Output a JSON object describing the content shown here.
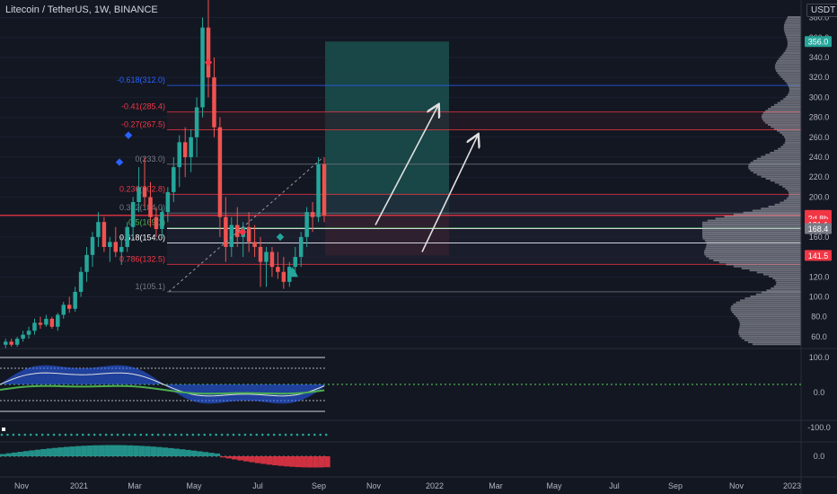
{
  "header": {
    "title": "Litecoin / TetherUS, 1W, BINANCE",
    "currency": "USDT"
  },
  "colors": {
    "background": "#131722",
    "bull": "#26a69a",
    "bear": "#ef5350",
    "line_red": "#f23645",
    "fib_blue": "#2962ff",
    "profit_zone": "#1b4b49",
    "loss_zone": "#4a1f27"
  },
  "chart_data": {
    "type": "candlestick",
    "symbol": "Litecoin / TetherUS",
    "interval": "1W",
    "exchange": "BINANCE",
    "y_axis": {
      "ticks": [
        60,
        80,
        100,
        120,
        140,
        160,
        180,
        200,
        220,
        240,
        260,
        280,
        300,
        320,
        340,
        360,
        380
      ],
      "tick_labels": [
        "60.0",
        "80.0",
        "100.0",
        "120.0",
        "140.0",
        "160.0",
        "180.0",
        "200.0",
        "220.0",
        "240.0",
        "260.0",
        "280.0",
        "300.0",
        "320.0",
        "340.0",
        "360.0",
        "380.0"
      ],
      "range": [
        50,
        385
      ]
    },
    "x_axis": {
      "ticks": [
        "Nov",
        "2021",
        "Mar",
        "May",
        "Jul",
        "Sep",
        "Nov",
        "2022",
        "Mar",
        "May",
        "Jul",
        "Sep",
        "Nov",
        "2023"
      ]
    },
    "price_badges": [
      {
        "label": "356.0",
        "value": 356.0,
        "color": "#26a69a"
      },
      {
        "label": "181.7",
        "value": 181.7,
        "color": "#f23645"
      },
      {
        "label": "2d 8h",
        "value": 179.0,
        "color": "#f23645"
      },
      {
        "label": "181.1",
        "value": 172.5,
        "color": "#f23645"
      },
      {
        "label": "168.4",
        "value": 168.4,
        "color": "#787b86"
      },
      {
        "label": "141.5",
        "value": 141.5,
        "color": "#f23645"
      }
    ],
    "fib_levels": [
      {
        "label": "-0.618(312.0)",
        "value": 312.0,
        "color": "#2962ff"
      },
      {
        "label": "-0.41(285.4)",
        "value": 285.4,
        "color": "#f23645"
      },
      {
        "label": "-0.27(267.5)",
        "value": 267.5,
        "color": "#f23645"
      },
      {
        "label": "0(233.0)",
        "value": 233.0,
        "color": "#787b86"
      },
      {
        "label": "0.236(202.8)",
        "value": 202.8,
        "color": "#f23645"
      },
      {
        "label": "0.382(184.0)",
        "value": 184.0,
        "color": "#787b86"
      },
      {
        "label": "0.5(169.1)",
        "value": 169.1,
        "color": "#4caf50"
      },
      {
        "label": "0.618(154.0)",
        "value": 154.0,
        "color": "#ffffff"
      },
      {
        "label": "0.786(132.5)",
        "value": 132.5,
        "color": "#f23645"
      },
      {
        "label": "1(105.1)",
        "value": 105.1,
        "color": "#787b86"
      }
    ],
    "horizontal_line": {
      "value": 181.7,
      "color": "#f23645"
    },
    "position": {
      "entry": 181.7,
      "target": 356.0,
      "stop": 141.5
    },
    "candles": [
      [
        52,
        58,
        48,
        55
      ],
      [
        55,
        58,
        50,
        52
      ],
      [
        52,
        60,
        50,
        58
      ],
      [
        58,
        66,
        55,
        62
      ],
      [
        62,
        70,
        58,
        66
      ],
      [
        66,
        78,
        62,
        74
      ],
      [
        74,
        80,
        68,
        72
      ],
      [
        72,
        82,
        70,
        78
      ],
      [
        78,
        80,
        68,
        70
      ],
      [
        70,
        84,
        66,
        82
      ],
      [
        82,
        95,
        78,
        92
      ],
      [
        92,
        100,
        84,
        88
      ],
      [
        88,
        110,
        85,
        105
      ],
      [
        105,
        130,
        100,
        125
      ],
      [
        125,
        150,
        115,
        142
      ],
      [
        142,
        165,
        130,
        160
      ],
      [
        160,
        185,
        150,
        175
      ],
      [
        175,
        180,
        145,
        150
      ],
      [
        150,
        160,
        135,
        155
      ],
      [
        155,
        170,
        140,
        145
      ],
      [
        145,
        160,
        132,
        150
      ],
      [
        150,
        175,
        145,
        170
      ],
      [
        170,
        200,
        160,
        195
      ],
      [
        195,
        230,
        185,
        210
      ],
      [
        210,
        240,
        190,
        200
      ],
      [
        200,
        215,
        170,
        180
      ],
      [
        180,
        190,
        160,
        168
      ],
      [
        168,
        190,
        160,
        185
      ],
      [
        185,
        210,
        175,
        205
      ],
      [
        205,
        240,
        195,
        230
      ],
      [
        230,
        262,
        210,
        255
      ],
      [
        255,
        270,
        220,
        240
      ],
      [
        240,
        268,
        225,
        260
      ],
      [
        260,
        300,
        240,
        290
      ],
      [
        290,
        380,
        280,
        370
      ],
      [
        370,
        410,
        300,
        320
      ],
      [
        320,
        340,
        260,
        270
      ],
      [
        270,
        280,
        160,
        180
      ],
      [
        180,
        200,
        135,
        150
      ],
      [
        150,
        180,
        140,
        172
      ],
      [
        172,
        190,
        150,
        160
      ],
      [
        160,
        175,
        140,
        170
      ],
      [
        170,
        185,
        145,
        155
      ],
      [
        155,
        172,
        140,
        150
      ],
      [
        150,
        160,
        110,
        135
      ],
      [
        135,
        150,
        110,
        145
      ],
      [
        145,
        150,
        120,
        130
      ],
      [
        130,
        145,
        118,
        125
      ],
      [
        125,
        140,
        108,
        115
      ],
      [
        115,
        135,
        110,
        130
      ],
      [
        130,
        150,
        120,
        140
      ],
      [
        140,
        165,
        130,
        160
      ],
      [
        160,
        190,
        150,
        185
      ],
      [
        185,
        195,
        165,
        180
      ],
      [
        180,
        240,
        175,
        233
      ],
      [
        233,
        240,
        175,
        181.7
      ]
    ],
    "macd_ticks": [
      "100.0",
      "0.0",
      "-100.0"
    ],
    "bottom_ticks": [
      "0.0"
    ]
  }
}
